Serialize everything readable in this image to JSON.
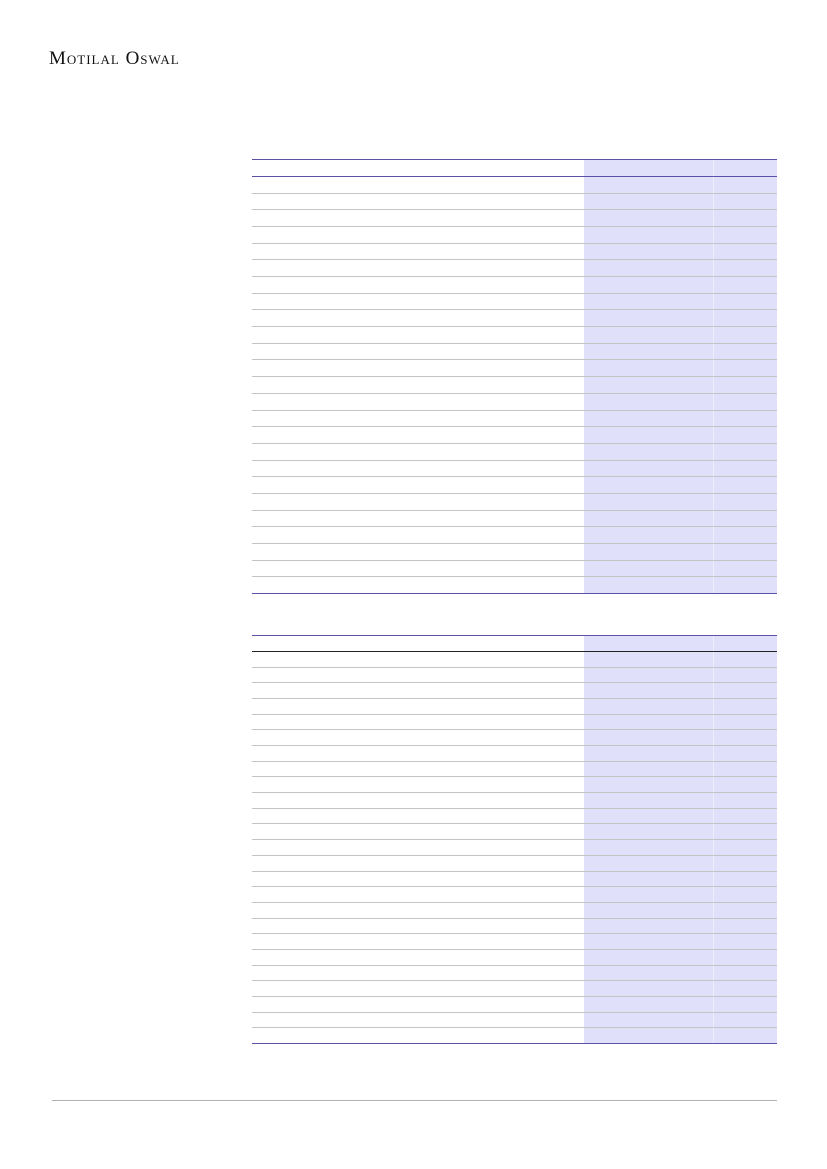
{
  "header": {
    "logo_text": "Motilal Oswal"
  },
  "colors": {
    "accent": "#5a52a8",
    "highlight_column": "#e0e0fb"
  }
}
